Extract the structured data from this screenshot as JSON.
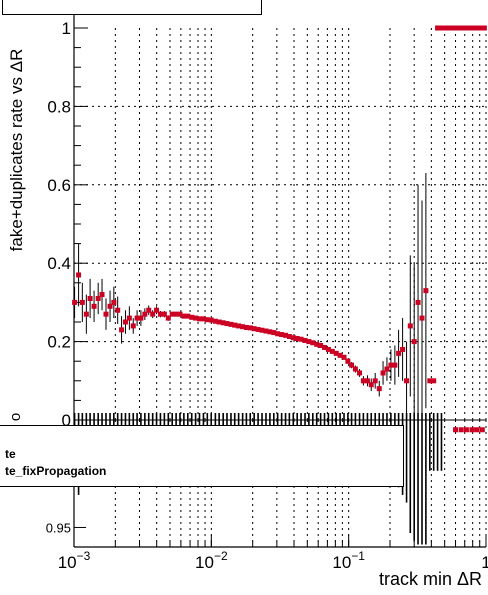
{
  "chart_data": [
    {
      "panel": "main",
      "type": "scatter",
      "ylabel": "fake+duplicates rate vs ΔR",
      "xscale": "log",
      "xlim": [
        0.001,
        1
      ],
      "ylim": [
        0,
        1
      ],
      "yticks": [
        "0",
        "0.2",
        "0.4",
        "0.6",
        "0.8",
        "1"
      ],
      "grid": true,
      "colors": {
        "reference": "#1a3fcf",
        "new": "#cc0022"
      },
      "x": [
        0.00101,
        0.00108,
        0.00115,
        0.00123,
        0.00131,
        0.0014,
        0.0015,
        0.0016,
        0.00171,
        0.00183,
        0.00195,
        0.00208,
        0.00222,
        0.00237,
        0.00253,
        0.0027,
        0.00288,
        0.00307,
        0.00328,
        0.0035,
        0.00374,
        0.00399,
        0.00426,
        0.00455,
        0.00486,
        0.00519,
        0.00554,
        0.00591,
        0.00631,
        0.00674,
        0.0072,
        0.00768,
        0.0082,
        0.00876,
        0.00935,
        0.00998,
        0.0107,
        0.0114,
        0.0122,
        0.013,
        0.0139,
        0.0148,
        0.0158,
        0.0169,
        0.018,
        0.0192,
        0.0205,
        0.0219,
        0.0234,
        0.025,
        0.0267,
        0.0285,
        0.0304,
        0.0325,
        0.0347,
        0.037,
        0.0395,
        0.0422,
        0.045,
        0.0481,
        0.0513,
        0.0548,
        0.0585,
        0.0625,
        0.0667,
        0.0712,
        0.076,
        0.0811,
        0.0866,
        0.0925,
        0.0987,
        0.105,
        0.112,
        0.12,
        0.128,
        0.137,
        0.146,
        0.156,
        0.167,
        0.178,
        0.19,
        0.203,
        0.217,
        0.231,
        0.247,
        0.264,
        0.281,
        0.3,
        0.32,
        0.342,
        0.365,
        0.39,
        0.416,
        0.444,
        0.474,
        0.506,
        0.54,
        0.577,
        0.616,
        0.657,
        0.702,
        0.749,
        0.8,
        0.854,
        0.912,
        0.973
      ],
      "y": [
        0.3,
        0.37,
        0.3,
        0.27,
        0.31,
        0.29,
        0.31,
        0.32,
        0.27,
        0.29,
        0.3,
        0.28,
        0.23,
        0.25,
        0.26,
        0.24,
        0.26,
        0.26,
        0.27,
        0.28,
        0.27,
        0.28,
        0.27,
        0.27,
        0.26,
        0.27,
        0.27,
        0.27,
        0.265,
        0.265,
        0.262,
        0.26,
        0.258,
        0.258,
        0.256,
        0.255,
        0.252,
        0.25,
        0.248,
        0.246,
        0.244,
        0.242,
        0.24,
        0.238,
        0.236,
        0.235,
        0.233,
        0.231,
        0.229,
        0.227,
        0.225,
        0.223,
        0.22,
        0.218,
        0.216,
        0.213,
        0.21,
        0.208,
        0.206,
        0.203,
        0.2,
        0.197,
        0.193,
        0.19,
        0.185,
        0.18,
        0.175,
        0.17,
        0.165,
        0.16,
        0.15,
        0.14,
        0.13,
        0.12,
        0.1,
        0.1,
        0.09,
        0.1,
        0.08,
        0.12,
        0.13,
        0.14,
        0.14,
        0.17,
        0.18,
        0.1,
        0.24,
        0.2,
        0.3,
        0.26,
        0.33,
        0.1,
        0.1,
        1,
        1,
        1,
        1,
        1,
        1,
        1,
        1,
        1,
        1,
        1,
        1,
        1
      ],
      "yerr": [
        0.04,
        0.08,
        0.05,
        0.05,
        0.05,
        0.04,
        0.04,
        0.04,
        0.04,
        0.04,
        0.04,
        0.035,
        0.035,
        0.03,
        0.03,
        0.02,
        0.02,
        0.02,
        0.015,
        0.012,
        0.01,
        0.01,
        0.008,
        0.008,
        0.007,
        0.006,
        0.006,
        0.005,
        0.005,
        0.005,
        0.004,
        0.004,
        0.004,
        0.004,
        0.004,
        0.004,
        0.003,
        0.003,
        0.003,
        0.003,
        0.003,
        0.003,
        0.003,
        0.003,
        0.003,
        0.003,
        0.003,
        0.003,
        0.003,
        0.003,
        0.003,
        0.003,
        0.003,
        0.003,
        0.003,
        0.003,
        0.003,
        0.003,
        0.003,
        0.003,
        0.004,
        0.004,
        0.004,
        0.004,
        0.005,
        0.005,
        0.005,
        0.006,
        0.006,
        0.006,
        0.007,
        0.008,
        0.009,
        0.01,
        0.012,
        0.014,
        0.016,
        0.02,
        0.02,
        0.03,
        0.03,
        0.04,
        0.05,
        0.06,
        0.08,
        0.1,
        0.18,
        0.2,
        0.3,
        0.3,
        0.3,
        0,
        0,
        0,
        0,
        0,
        0,
        0,
        0,
        0,
        0,
        0,
        0,
        0,
        0,
        0
      ]
    },
    {
      "panel": "ratio",
      "type": "scatter",
      "xscale": "log",
      "xlim": [
        0.001,
        1
      ],
      "ylim": [
        0.94,
        1.005
      ],
      "xlabel": "track min ΔR",
      "xticks": [
        {
          "base": "10",
          "exp": "−3"
        },
        {
          "base": "10",
          "exp": "−2"
        },
        {
          "base": "10",
          "exp": "−1"
        },
        {
          "base": "1",
          "exp": ""
        }
      ],
      "yticks": [
        "0.95"
      ],
      "ylabel_fragment": "o",
      "grid": true,
      "ratio_value": 1,
      "points_x": [
        0.6,
        0.66,
        0.72,
        0.79,
        0.86,
        0.94
      ]
    }
  ],
  "legend": {
    "entries": [
      {
        "label": "te",
        "color": "#1a3fcf"
      },
      {
        "label": "te_fixPropagation",
        "color": "#cc0022"
      }
    ]
  }
}
